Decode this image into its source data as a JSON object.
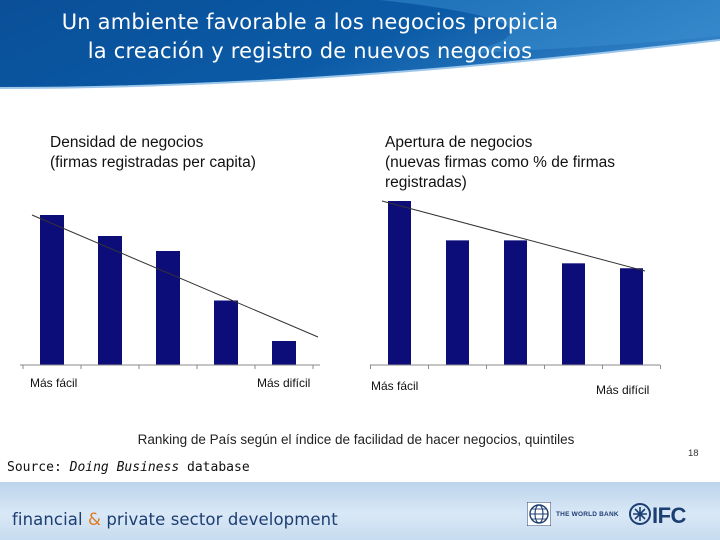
{
  "slide": {
    "title_lines": [
      "Un ambiente favorable a los negocios propicia",
      "la creación y registro de nuevos negocios"
    ],
    "x_caption": "Ranking de País según el índice de facilidad de hacer negocios, quintiles",
    "source_prefix": "Source: ",
    "source_italic": "Doing Business",
    "source_suffix": " database",
    "page_number": "18"
  },
  "footer": {
    "text_part1": "financial",
    "text_amp": " & ",
    "text_part2": "private sector development",
    "wb_label": "THE WORLD BANK",
    "ifc_label": "IFC"
  },
  "colors": {
    "header_blue": "#0b5aa6",
    "bar_navy": "#0d0d7a",
    "footer_text": "#1d3e73",
    "amp_orange": "#e07a1f"
  },
  "chart_data": [
    {
      "type": "bar",
      "title_lines": [
        "Densidad de negocios",
        "(firmas registradas per capita)"
      ],
      "categories": [
        "1",
        "2",
        "3",
        "4",
        "5"
      ],
      "values": [
        100,
        86,
        76,
        43,
        16
      ],
      "ylim": [
        0,
        100
      ],
      "x_left_label": "Más fácil",
      "x_right_label": "Más difícil",
      "trendline": true,
      "grid": false
    },
    {
      "type": "bar",
      "title_lines": [
        "Apertura de negocios",
        "(nuevas firmas como % de firmas",
        "registradas)"
      ],
      "categories": [
        "1",
        "2",
        "3",
        "4",
        "5"
      ],
      "values": [
        100,
        76,
        76,
        62,
        59
      ],
      "ylim": [
        0,
        100
      ],
      "x_left_label": "Más fácil",
      "x_right_label": "Más difícil",
      "trendline": true,
      "grid": false
    }
  ]
}
